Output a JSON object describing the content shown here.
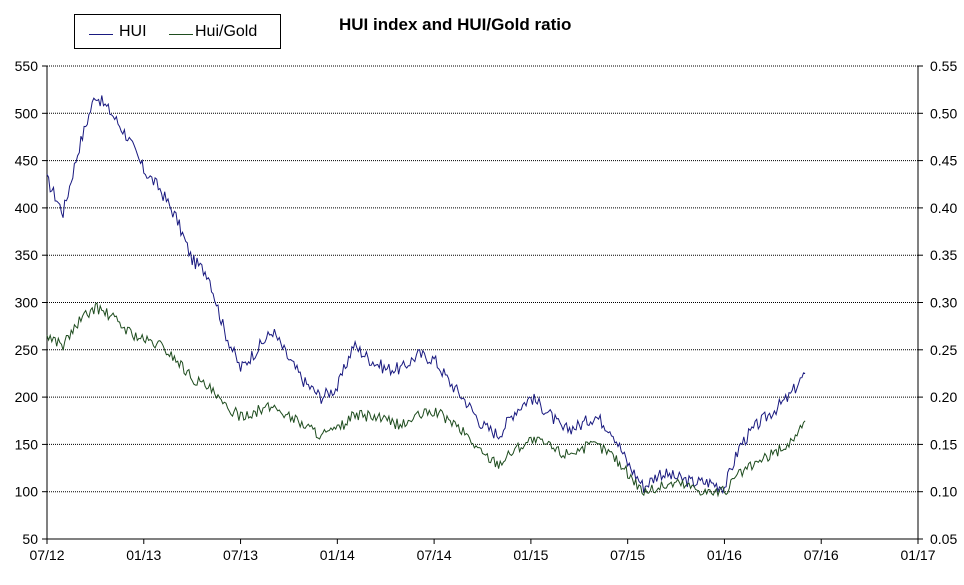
{
  "colors": {
    "hui": "#1a1a80",
    "ratio": "#1f4d1f",
    "grid": "#000000",
    "axis": "#000000"
  },
  "chart_data": {
    "type": "line",
    "title": "HUI index and HUI/Gold  ratio",
    "legend_position": "top-left",
    "grid": true,
    "x_ticks": [
      "07/12",
      "01/13",
      "07/13",
      "01/14",
      "07/14",
      "01/15",
      "07/15",
      "01/16",
      "07/16",
      "01/17"
    ],
    "xlim": [
      "07/12",
      "01/17"
    ],
    "y_left": {
      "ylim": [
        50,
        550
      ],
      "ticks": [
        "50",
        "100",
        "150",
        "200",
        "250",
        "300",
        "350",
        "400",
        "450",
        "500",
        "550"
      ]
    },
    "y_right": {
      "ylim": [
        0.05,
        0.55
      ],
      "ticks": [
        "0.05",
        "0.10",
        "0.15",
        "0.20",
        "0.25",
        "0.30",
        "0.35",
        "0.40",
        "0.45",
        "0.50",
        "0.55"
      ]
    },
    "series": [
      {
        "name": "HUI",
        "axis": "left",
        "x": [
          "2012-07",
          "2012-08",
          "2012-09",
          "2012-10",
          "2012-11",
          "2012-12",
          "2013-01",
          "2013-02",
          "2013-03",
          "2013-04",
          "2013-05",
          "2013-06",
          "2013-07",
          "2013-08",
          "2013-09",
          "2013-10",
          "2013-11",
          "2013-12",
          "2014-01",
          "2014-02",
          "2014-03",
          "2014-04",
          "2014-05",
          "2014-06",
          "2014-07",
          "2014-08",
          "2014-09",
          "2014-10",
          "2014-11",
          "2014-12",
          "2015-01",
          "2015-02",
          "2015-03",
          "2015-04",
          "2015-05",
          "2015-06",
          "2015-07",
          "2015-08",
          "2015-09",
          "2015-10",
          "2015-11",
          "2015-12",
          "2016-01",
          "2016-02",
          "2016-03",
          "2016-04",
          "2016-05",
          "2016-06"
        ],
        "values": [
          430,
          395,
          465,
          520,
          500,
          475,
          440,
          420,
          390,
          345,
          330,
          270,
          230,
          250,
          270,
          240,
          215,
          200,
          210,
          255,
          240,
          230,
          230,
          245,
          240,
          215,
          195,
          170,
          160,
          185,
          200,
          185,
          165,
          170,
          180,
          165,
          130,
          105,
          120,
          115,
          110,
          110,
          105,
          150,
          170,
          185,
          200,
          225
        ]
      },
      {
        "name": "Hui/Gold",
        "axis": "right",
        "x": [
          "2012-07",
          "2012-08",
          "2012-09",
          "2012-10",
          "2012-11",
          "2012-12",
          "2013-01",
          "2013-02",
          "2013-03",
          "2013-04",
          "2013-05",
          "2013-06",
          "2013-07",
          "2013-08",
          "2013-09",
          "2013-10",
          "2013-11",
          "2013-12",
          "2014-01",
          "2014-02",
          "2014-03",
          "2014-04",
          "2014-05",
          "2014-06",
          "2014-07",
          "2014-08",
          "2014-09",
          "2014-10",
          "2014-11",
          "2014-12",
          "2015-01",
          "2015-02",
          "2015-03",
          "2015-04",
          "2015-05",
          "2015-06",
          "2015-07",
          "2015-08",
          "2015-09",
          "2015-10",
          "2015-11",
          "2015-12",
          "2016-01",
          "2016-02",
          "2016-03",
          "2016-04",
          "2016-05",
          "2016-06"
        ],
        "values": [
          0.265,
          0.255,
          0.28,
          0.295,
          0.285,
          0.27,
          0.26,
          0.255,
          0.24,
          0.22,
          0.21,
          0.19,
          0.18,
          0.185,
          0.19,
          0.18,
          0.17,
          0.16,
          0.165,
          0.18,
          0.18,
          0.175,
          0.17,
          0.18,
          0.185,
          0.175,
          0.16,
          0.14,
          0.13,
          0.145,
          0.155,
          0.15,
          0.14,
          0.145,
          0.15,
          0.14,
          0.12,
          0.1,
          0.105,
          0.11,
          0.105,
          0.1,
          0.1,
          0.12,
          0.13,
          0.14,
          0.15,
          0.175
        ]
      }
    ]
  }
}
